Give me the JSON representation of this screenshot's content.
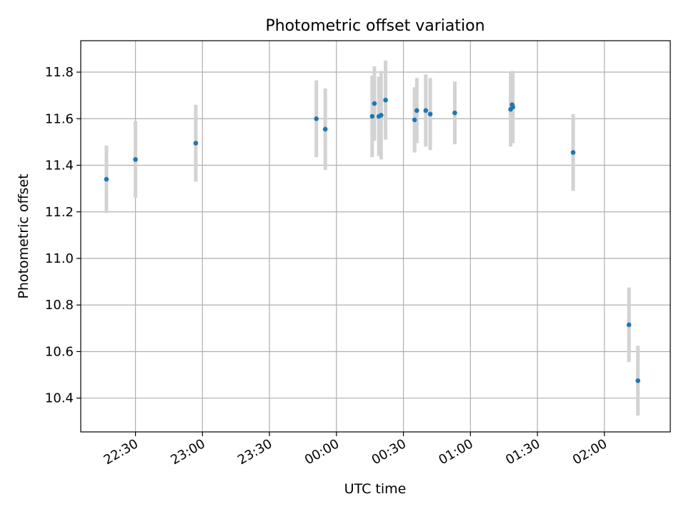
{
  "chart_data": {
    "type": "scatter",
    "title": "Photometric offset variation",
    "xlabel": "UTC time",
    "ylabel": "Photometric offset",
    "x_tick_labels": [
      "22:30",
      "23:00",
      "23:30",
      "00:00",
      "00:30",
      "01:00",
      "01:30",
      "02:00"
    ],
    "y_tick_labels": [
      "10.4",
      "10.6",
      "10.8",
      "11.0",
      "11.2",
      "11.4",
      "11.6",
      "11.8"
    ],
    "ylim": [
      10.255,
      11.935
    ],
    "xlim": [
      "22:05:30",
      "02:29:30"
    ],
    "grid": true,
    "colors": {
      "point": "#1f77b4",
      "errorbar": "#d3d3d3",
      "grid": "#b0b0b0"
    },
    "points": [
      {
        "t": "22:17",
        "y": 11.34,
        "err": 0.145
      },
      {
        "t": "22:30",
        "y": 11.425,
        "err": 0.165
      },
      {
        "t": "22:57",
        "y": 11.495,
        "err": 0.165
      },
      {
        "t": "23:51",
        "y": 11.6,
        "err": 0.165
      },
      {
        "t": "23:55",
        "y": 11.555,
        "err": 0.175
      },
      {
        "t": "00:16",
        "y": 11.61,
        "err": 0.175
      },
      {
        "t": "00:17",
        "y": 11.665,
        "err": 0.16
      },
      {
        "t": "00:19",
        "y": 11.61,
        "err": 0.17
      },
      {
        "t": "00:20",
        "y": 11.615,
        "err": 0.19
      },
      {
        "t": "00:22",
        "y": 11.68,
        "err": 0.17
      },
      {
        "t": "00:35",
        "y": 11.595,
        "err": 0.14
      },
      {
        "t": "00:36",
        "y": 11.635,
        "err": 0.14
      },
      {
        "t": "00:40",
        "y": 11.635,
        "err": 0.155
      },
      {
        "t": "00:42",
        "y": 11.62,
        "err": 0.155
      },
      {
        "t": "00:53",
        "y": 11.625,
        "err": 0.135
      },
      {
        "t": "01:18",
        "y": 11.64,
        "err": 0.16
      },
      {
        "t": "01:18:40",
        "y": 11.66,
        "err": 0.145
      },
      {
        "t": "01:19",
        "y": 11.65,
        "err": 0.155
      },
      {
        "t": "01:46",
        "y": 11.455,
        "err": 0.165
      },
      {
        "t": "02:11",
        "y": 10.715,
        "err": 0.16
      },
      {
        "t": "02:15",
        "y": 10.475,
        "err": 0.15
      }
    ]
  }
}
